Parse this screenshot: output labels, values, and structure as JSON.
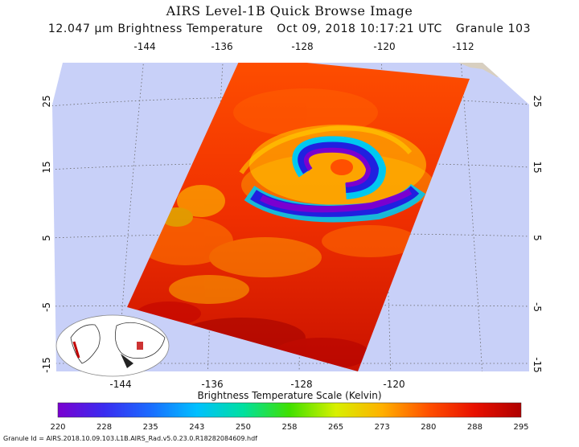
{
  "title": "AIRS Level-1B Quick Browse Image",
  "subtitle": {
    "wavelength": "12.047 μm Brightness Temperature",
    "datetime": "Oct 09, 2018 10:17:21 UTC",
    "granule": "Granule 103"
  },
  "map": {
    "lon_top_labels": [
      "-144",
      "-136",
      "-128",
      "-120",
      "-112"
    ],
    "lon_bottom_labels": [
      "-144",
      "-136",
      "-128",
      "-120"
    ],
    "lat_left_labels": [
      "25",
      "15",
      "5",
      "-5",
      "-15"
    ],
    "lat_right_labels": [
      "25",
      "15",
      "5",
      "-5",
      "-15"
    ],
    "ocean_color": "#c8d0f8",
    "land_color": "#d8cfc0"
  },
  "colorbar": {
    "title": "Brightness Temperature Scale (Kelvin)",
    "tick_labels": [
      "220",
      "228",
      "235",
      "243",
      "250",
      "258",
      "265",
      "273",
      "280",
      "288",
      "295"
    ],
    "colors": [
      "#7a00d0",
      "#3a2cf0",
      "#1a6cff",
      "#00c0ff",
      "#00e0a0",
      "#40e000",
      "#d8f000",
      "#ffb000",
      "#ff5000",
      "#e81000",
      "#b00000"
    ]
  },
  "footer": "Granule Id = AIRS.2018.10.09.103.L1B.AIRS_Rad.v5.0.23.0.R18282084609.hdf"
}
